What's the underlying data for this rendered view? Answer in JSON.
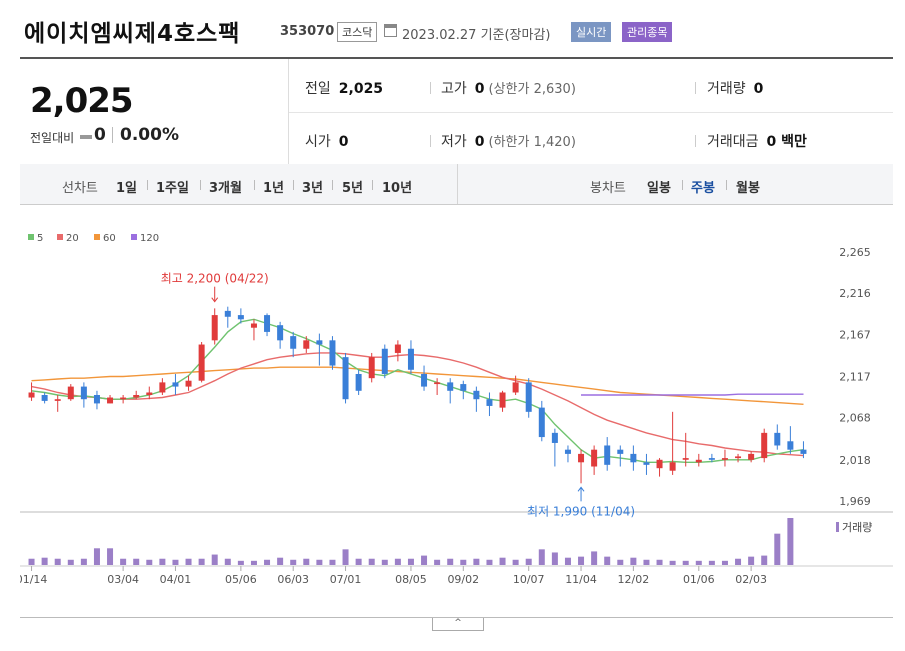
{
  "header": {
    "name": "에이치엠씨제4호스팩",
    "code": "353070",
    "market": "코스닥",
    "date": "2023.02.27 기준(장마감)",
    "realtime": "실시간",
    "admin": "관리종목"
  },
  "quote": {
    "price": "2,025",
    "change_label": "전일대비",
    "change": "0",
    "change_pct": "0.00%",
    "prev_label": "전일",
    "prev": "2,025",
    "high_label": "고가",
    "high": "0",
    "upper_limit": "(상한가 2,630)",
    "volume_label": "거래량",
    "volume": "0",
    "open_label": "시가",
    "open": "0",
    "low_label": "저가",
    "low": "0",
    "lower_limit": "(하한가 1,420)",
    "amount_label": "거래대금",
    "amount": "0 백만"
  },
  "period": {
    "chart_label": "선차트",
    "options": [
      "1일",
      "1주일",
      "3개월",
      "1년",
      "3년",
      "5년",
      "10년"
    ],
    "candle_label": "봉차트",
    "candle_options": [
      "일봉",
      "주봉",
      "월봉"
    ],
    "active_candle": "주봉"
  },
  "colors": {
    "up": "#e03b3b",
    "down": "#3a7fd8",
    "ma5": "#6fc36f",
    "ma20": "#e86b6b",
    "ma60": "#f2963a",
    "ma120": "#9b6fe0",
    "volume": "#9b7fc7"
  },
  "chart_data": {
    "type": "candlestick",
    "legend": [
      "5",
      "20",
      "60",
      "120"
    ],
    "y_ticks": [
      2265,
      2216,
      2167,
      2117,
      2068,
      2018,
      1969
    ],
    "ylim": [
      1969,
      2265
    ],
    "x_tick_labels": [
      "01/14",
      "03/04",
      "04/01",
      "05/06",
      "06/03",
      "07/01",
      "08/05",
      "09/02",
      "10/07",
      "11/04",
      "12/02",
      "01/06",
      "02/03"
    ],
    "x_tick_index": [
      0,
      7,
      11,
      16,
      20,
      24,
      29,
      33,
      38,
      42,
      46,
      51,
      55
    ],
    "high_note": "최고 2,200 (04/22)",
    "high_index": 14,
    "high_value": 2200,
    "low_note": "최저 1,990 (11/04)",
    "low_index": 42,
    "low_value": 1990,
    "volume_label": "거래량",
    "candles": [
      [
        2092,
        2110,
        2088,
        2098
      ],
      [
        2095,
        2098,
        2085,
        2088
      ],
      [
        2088,
        2095,
        2075,
        2090
      ],
      [
        2090,
        2108,
        2088,
        2105
      ],
      [
        2105,
        2110,
        2080,
        2090
      ],
      [
        2095,
        2100,
        2078,
        2085
      ],
      [
        2085,
        2095,
        2085,
        2092
      ],
      [
        2090,
        2095,
        2085,
        2092
      ],
      [
        2092,
        2100,
        2090,
        2095
      ],
      [
        2095,
        2105,
        2090,
        2098
      ],
      [
        2098,
        2115,
        2095,
        2110
      ],
      [
        2110,
        2120,
        2095,
        2105
      ],
      [
        2105,
        2118,
        2100,
        2112
      ],
      [
        2112,
        2158,
        2110,
        2155
      ],
      [
        2160,
        2198,
        2155,
        2190
      ],
      [
        2195,
        2200,
        2175,
        2188
      ],
      [
        2190,
        2198,
        2180,
        2185
      ],
      [
        2175,
        2185,
        2160,
        2180
      ],
      [
        2190,
        2192,
        2165,
        2170
      ],
      [
        2178,
        2182,
        2150,
        2160
      ],
      [
        2165,
        2170,
        2140,
        2150
      ],
      [
        2150,
        2165,
        2145,
        2160
      ],
      [
        2160,
        2168,
        2130,
        2155
      ],
      [
        2160,
        2165,
        2125,
        2130
      ],
      [
        2140,
        2145,
        2085,
        2090
      ],
      [
        2120,
        2125,
        2095,
        2100
      ],
      [
        2115,
        2145,
        2110,
        2140
      ],
      [
        2150,
        2155,
        2115,
        2120
      ],
      [
        2145,
        2160,
        2135,
        2155
      ],
      [
        2150,
        2160,
        2120,
        2125
      ],
      [
        2120,
        2130,
        2100,
        2105
      ],
      [
        2108,
        2115,
        2095,
        2110
      ],
      [
        2110,
        2115,
        2085,
        2100
      ],
      [
        2108,
        2112,
        2090,
        2100
      ],
      [
        2100,
        2105,
        2075,
        2090
      ],
      [
        2090,
        2098,
        2070,
        2082
      ],
      [
        2080,
        2100,
        2075,
        2098
      ],
      [
        2098,
        2118,
        2095,
        2110
      ],
      [
        2110,
        2115,
        2068,
        2075
      ],
      [
        2080,
        2088,
        2040,
        2045
      ],
      [
        2050,
        2055,
        2010,
        2038
      ],
      [
        2030,
        2035,
        2015,
        2025
      ],
      [
        2015,
        2030,
        1990,
        2025
      ],
      [
        2010,
        2035,
        2000,
        2030
      ],
      [
        2035,
        2045,
        2005,
        2012
      ],
      [
        2030,
        2035,
        2010,
        2025
      ],
      [
        2025,
        2035,
        2005,
        2015
      ],
      [
        2015,
        2025,
        2000,
        2012
      ],
      [
        2008,
        2020,
        1998,
        2018
      ],
      [
        2005,
        2075,
        2000,
        2015
      ],
      [
        2018,
        2050,
        2010,
        2020
      ],
      [
        2015,
        2025,
        2010,
        2018
      ],
      [
        2020,
        2025,
        2015,
        2018
      ],
      [
        2018,
        2030,
        2010,
        2020
      ],
      [
        2020,
        2025,
        2015,
        2022
      ],
      [
        2018,
        2028,
        2015,
        2025
      ],
      [
        2020,
        2055,
        2015,
        2050
      ],
      [
        2050,
        2060,
        2030,
        2035
      ],
      [
        2040,
        2058,
        2025,
        2030
      ],
      [
        2030,
        2040,
        2020,
        2025
      ]
    ],
    "ma5": [
      2100,
      2098,
      2095,
      2093,
      2094,
      2092,
      2090,
      2090,
      2092,
      2095,
      2100,
      2108,
      2118,
      2135,
      2152,
      2170,
      2182,
      2185,
      2180,
      2175,
      2168,
      2162,
      2155,
      2148,
      2135,
      2125,
      2120,
      2118,
      2125,
      2120,
      2115,
      2110,
      2105,
      2100,
      2095,
      2090,
      2088,
      2090,
      2085,
      2078,
      2060,
      2045,
      2030,
      2020,
      2022,
      2020,
      2018,
      2015,
      2015,
      2016,
      2015,
      2015,
      2016,
      2018,
      2018,
      2018,
      2022,
      2025,
      2028,
      2030
    ],
    "ma20": [
      2105,
      2102,
      2098,
      2095,
      2093,
      2092,
      2090,
      2090,
      2090,
      2091,
      2092,
      2095,
      2098,
      2105,
      2112,
      2120,
      2127,
      2132,
      2137,
      2140,
      2142,
      2144,
      2145,
      2145,
      2144,
      2142,
      2140,
      2140,
      2142,
      2143,
      2142,
      2140,
      2137,
      2133,
      2128,
      2122,
      2116,
      2112,
      2108,
      2102,
      2095,
      2088,
      2080,
      2072,
      2065,
      2060,
      2055,
      2050,
      2046,
      2042,
      2040,
      2037,
      2035,
      2032,
      2030,
      2028,
      2027,
      2025,
      2024,
      2023
    ],
    "ma60": [
      2112,
      2113,
      2114,
      2115,
      2115,
      2116,
      2117,
      2117,
      2118,
      2119,
      2120,
      2121,
      2122,
      2123,
      2124,
      2125,
      2126,
      2127,
      2127,
      2128,
      2128,
      2128,
      2128,
      2128,
      2127,
      2126,
      2125,
      2124,
      2123,
      2122,
      2121,
      2120,
      2119,
      2118,
      2117,
      2116,
      2115,
      2114,
      2112,
      2110,
      2108,
      2106,
      2104,
      2102,
      2100,
      2098,
      2097,
      2096,
      2095,
      2094,
      2093,
      2092,
      2091,
      2090,
      2089,
      2088,
      2087,
      2086,
      2085,
      2084
    ],
    "ma120": [
      null,
      null,
      null,
      null,
      null,
      null,
      null,
      null,
      null,
      null,
      null,
      null,
      null,
      null,
      null,
      null,
      null,
      null,
      null,
      null,
      null,
      null,
      null,
      null,
      null,
      null,
      null,
      null,
      null,
      null,
      null,
      null,
      null,
      null,
      null,
      null,
      null,
      null,
      null,
      null,
      null,
      null,
      2095,
      2095,
      2095,
      2095,
      2095,
      2095,
      2095,
      2095,
      2095,
      2095,
      2095,
      2095,
      2096,
      2096,
      2096,
      2096,
      2096,
      2096
    ],
    "volume": [
      6,
      7,
      6,
      5,
      6,
      16,
      16,
      6,
      6,
      5,
      6,
      5,
      6,
      6,
      10,
      6,
      4,
      4,
      5,
      7,
      5,
      6,
      5,
      5,
      15,
      6,
      6,
      5,
      6,
      6,
      9,
      5,
      6,
      5,
      6,
      5,
      7,
      5,
      6,
      15,
      12,
      7,
      8,
      13,
      8,
      5,
      7,
      5,
      5,
      4,
      4,
      4,
      4,
      4,
      6,
      8,
      9,
      30,
      45,
      0
    ]
  }
}
